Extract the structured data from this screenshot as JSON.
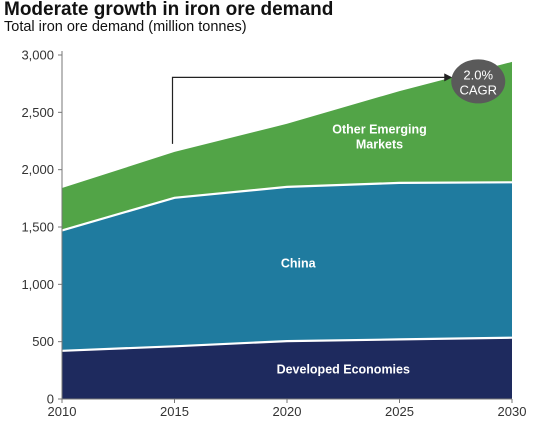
{
  "title": "Moderate growth in iron ore demand",
  "subtitle": "Total iron ore demand (million tonnes)",
  "chart_data": {
    "type": "area",
    "stacked": true,
    "x": [
      2010,
      2015,
      2020,
      2025,
      2030
    ],
    "ylim": [
      0,
      3000
    ],
    "yticks": [
      "0",
      "500",
      "1,000",
      "1,500",
      "2,000",
      "2,500",
      "3,000"
    ],
    "ytick_values": [
      0,
      500,
      1000,
      1500,
      2000,
      2500,
      3000
    ],
    "xticks": [
      "2010",
      "2015",
      "2020",
      "2025",
      "2030"
    ],
    "grid": false,
    "series": [
      {
        "name": "Developed Economies",
        "values": [
          420,
          460,
          505,
          520,
          535
        ],
        "color": "#1e2a5e"
      },
      {
        "name": "China",
        "values": [
          1050,
          1295,
          1345,
          1365,
          1355
        ],
        "color": "#1f7b9f"
      },
      {
        "name": "Other Emerging Markets",
        "values": [
          370,
          400,
          550,
          800,
          1050
        ],
        "color": "#52a447"
      }
    ],
    "annotation": {
      "lines": [
        "2.0%",
        "CAGR"
      ],
      "from_x": 2015,
      "to_x": 2030,
      "color": "#5a5a5a"
    }
  }
}
